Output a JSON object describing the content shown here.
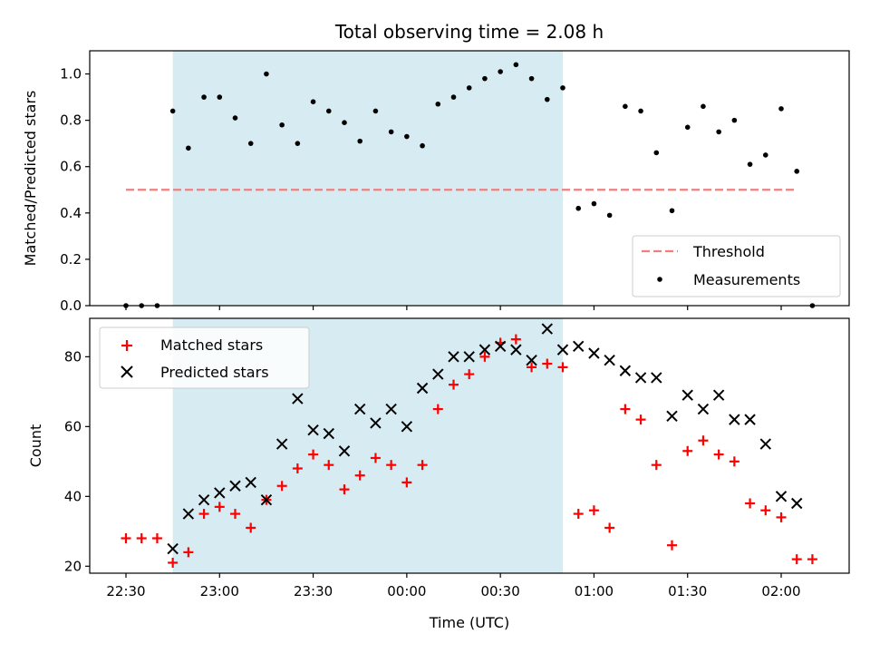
{
  "chart_data": [
    {
      "type": "scatter",
      "title": "Total observing time = 2.08 h",
      "ylabel": "Matched/Predicted stars",
      "xlabel": "",
      "ylim": [
        0,
        1.1
      ],
      "y_ticks": [
        0.0,
        0.2,
        0.4,
        0.6,
        0.8,
        1.0
      ],
      "y_tick_labels": [
        "0.0",
        "0.2",
        "0.4",
        "0.6",
        "0.8",
        "1.0"
      ],
      "shaded_range": [
        "22:45",
        "00:50"
      ],
      "legend": {
        "position": "lower right",
        "entries": [
          "Threshold",
          "Measurements"
        ]
      },
      "series": [
        {
          "name": "Threshold",
          "kind": "dashed-line",
          "color": "#f08080",
          "x": [
            "22:30",
            "02:05"
          ],
          "y": [
            0.5,
            0.5
          ]
        },
        {
          "name": "Measurements",
          "kind": "dot",
          "color": "#000000",
          "x": [
            "22:30",
            "22:35",
            "22:40",
            "22:45",
            "22:50",
            "22:55",
            "23:00",
            "23:05",
            "23:10",
            "23:15",
            "23:20",
            "23:25",
            "23:30",
            "23:35",
            "23:40",
            "23:45",
            "23:50",
            "23:55",
            "00:00",
            "00:05",
            "00:10",
            "00:15",
            "00:20",
            "00:25",
            "00:30",
            "00:35",
            "00:40",
            "00:45",
            "00:50",
            "00:55",
            "01:00",
            "01:05",
            "01:10",
            "01:15",
            "01:20",
            "01:25",
            "01:30",
            "01:35",
            "01:40",
            "01:45",
            "01:50",
            "01:55",
            "02:00",
            "02:05",
            "02:10"
          ],
          "y": [
            0,
            0,
            0,
            0.84,
            0.68,
            0.9,
            0.9,
            0.81,
            0.7,
            1.0,
            0.78,
            0.7,
            0.88,
            0.84,
            0.79,
            0.71,
            0.84,
            0.75,
            0.73,
            0.69,
            0.87,
            0.9,
            0.94,
            0.98,
            1.01,
            1.04,
            0.98,
            0.89,
            0.94,
            0.42,
            0.44,
            0.39,
            0.86,
            0.84,
            0.66,
            0.41,
            0.77,
            0.86,
            0.75,
            0.8,
            0.61,
            0.65,
            0.85,
            0.58,
            0
          ]
        }
      ]
    },
    {
      "type": "scatter",
      "title": "",
      "ylabel": "Count",
      "xlabel": "Time (UTC)",
      "ylim": [
        18,
        91
      ],
      "y_ticks": [
        20,
        40,
        60,
        80
      ],
      "y_tick_labels": [
        "20",
        "40",
        "60",
        "80"
      ],
      "x_tick_labels": [
        "22:30",
        "23:00",
        "23:30",
        "00:00",
        "00:30",
        "01:00",
        "01:30",
        "02:00"
      ],
      "shaded_range": [
        "22:45",
        "00:50"
      ],
      "legend": {
        "position": "upper left",
        "entries": [
          "Matched stars",
          "Predicted stars"
        ]
      },
      "series": [
        {
          "name": "Matched stars",
          "kind": "plus",
          "color": "#ff0000",
          "x": [
            "22:30",
            "22:35",
            "22:40",
            "22:45",
            "22:50",
            "22:55",
            "23:00",
            "23:05",
            "23:10",
            "23:15",
            "23:20",
            "23:25",
            "23:30",
            "23:35",
            "23:40",
            "23:45",
            "23:50",
            "23:55",
            "00:00",
            "00:05",
            "00:10",
            "00:15",
            "00:20",
            "00:25",
            "00:30",
            "00:35",
            "00:40",
            "00:45",
            "00:50",
            "00:55",
            "01:00",
            "01:05",
            "01:10",
            "01:15",
            "01:20",
            "01:25",
            "01:30",
            "01:35",
            "01:40",
            "01:45",
            "01:50",
            "01:55",
            "02:00",
            "02:05",
            "02:10"
          ],
          "y": [
            28,
            28,
            28,
            21,
            24,
            35,
            37,
            35,
            31,
            39,
            43,
            48,
            52,
            49,
            42,
            46,
            51,
            49,
            44,
            49,
            65,
            72,
            75,
            80,
            84,
            85,
            77,
            78,
            77,
            35,
            36,
            31,
            65,
            62,
            49,
            26,
            53,
            56,
            52,
            50,
            38,
            36,
            34,
            22,
            22
          ]
        },
        {
          "name": "Predicted stars",
          "kind": "cross",
          "color": "#000000",
          "x": [
            "22:45",
            "22:50",
            "22:55",
            "23:00",
            "23:05",
            "23:10",
            "23:15",
            "23:20",
            "23:25",
            "23:30",
            "23:35",
            "23:40",
            "23:45",
            "23:50",
            "23:55",
            "00:00",
            "00:05",
            "00:10",
            "00:15",
            "00:20",
            "00:25",
            "00:30",
            "00:35",
            "00:40",
            "00:45",
            "00:50",
            "00:55",
            "01:00",
            "01:05",
            "01:10",
            "01:15",
            "01:20",
            "01:25",
            "01:30",
            "01:35",
            "01:40",
            "01:45",
            "01:50",
            "01:55",
            "02:00",
            "02:05"
          ],
          "y": [
            25,
            35,
            39,
            41,
            43,
            44,
            39,
            55,
            68,
            59,
            58,
            53,
            65,
            61,
            65,
            60,
            71,
            75,
            80,
            80,
            82,
            83,
            82,
            79,
            88,
            82,
            83,
            81,
            79,
            76,
            74,
            74,
            63,
            69,
            65,
            69,
            62,
            62,
            55,
            40,
            38
          ]
        }
      ]
    }
  ]
}
